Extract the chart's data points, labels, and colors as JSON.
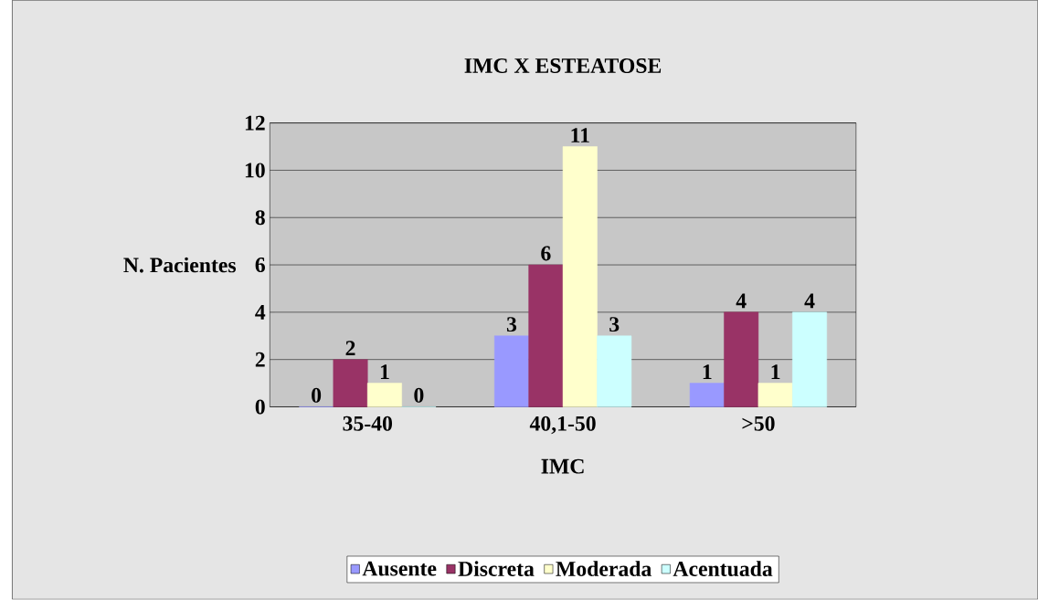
{
  "chart_data": {
    "type": "bar",
    "title": "IMC X ESTEATOSE",
    "xlabel": "IMC",
    "ylabel": "N. Pacientes",
    "categories": [
      "35-40",
      "40,1-50",
      ">50"
    ],
    "series": [
      {
        "name": "Ausente",
        "color": "#9999ff",
        "values": [
          0,
          3,
          1
        ]
      },
      {
        "name": "Discreta",
        "color": "#993366",
        "values": [
          2,
          6,
          4
        ]
      },
      {
        "name": "Moderada",
        "color": "#ffffcc",
        "values": [
          1,
          11,
          1
        ]
      },
      {
        "name": "Acentuada",
        "color": "#ccffff",
        "values": [
          0,
          3,
          4
        ]
      }
    ],
    "ylim": [
      0,
      12
    ],
    "yticks": [
      0,
      2,
      4,
      6,
      8,
      10,
      12
    ],
    "grid": "y",
    "legend": "bottom",
    "data_labels": true
  }
}
